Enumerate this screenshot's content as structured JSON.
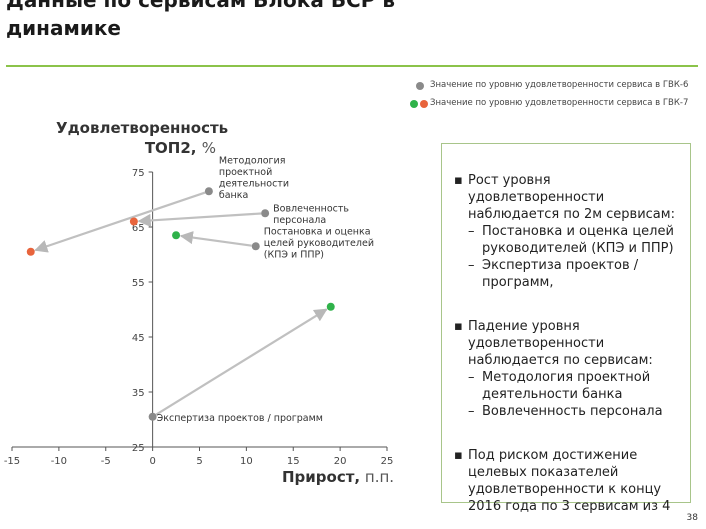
{
  "header": {
    "title": "Данные по сервисам Блока БСР в\nдинамике"
  },
  "colors": {
    "accent_green": "#8bc34a",
    "point_grey": "#8a8a8a",
    "point_green": "#2fb24a",
    "point_orange": "#e8643c",
    "arrow_grey": "#c0c0c0"
  },
  "legend": {
    "items": [
      {
        "label": "Значение по уровню удовлетворенности сервиса в ГВК-6",
        "color": "#8a8a8a"
      },
      {
        "label": "Значение по уровню удовлетворенности сервиса в ГВК-7",
        "color": "#2fb24a",
        "color2": "#e8643c"
      }
    ]
  },
  "axes": {
    "ylabel": "Удовлетворенность ТОП2,",
    "ylabel_unit": "%",
    "xlabel": "Прирост,",
    "xlabel_unit": "п.п."
  },
  "chart_data": {
    "type": "scatter",
    "xlim": [
      -15,
      25
    ],
    "ylim": [
      25,
      75
    ],
    "x_ticks": [
      "-15",
      "-10",
      "-5",
      "0",
      "5",
      "10",
      "15",
      "20",
      "25"
    ],
    "y_ticks": [
      "25",
      "35",
      "45",
      "55",
      "65",
      "75"
    ],
    "x_tick_values": [
      -15,
      -10,
      -5,
      0,
      5,
      10,
      15,
      20,
      25
    ],
    "y_tick_values": [
      25,
      35,
      45,
      55,
      65,
      75
    ],
    "series": [
      {
        "name": "Значение по уровню удовлетворенности сервиса в ГВК-6",
        "color": "#8a8a8a"
      },
      {
        "name": "Значение по уровню удовлетворенности сервиса в ГВК-7",
        "color": "#2fb24a"
      }
    ],
    "points": [
      {
        "service": "Методология проектной деятельности банка",
        "gvk6": {
          "x": 6,
          "y": 71.5
        },
        "gvk7": {
          "x": -13,
          "y": 60.5
        },
        "gvk7_color": "#e8643c"
      },
      {
        "service": "Вовлеченность персонала",
        "gvk6": {
          "x": 12,
          "y": 67.5
        },
        "gvk7": {
          "x": -2,
          "y": 66
        },
        "gvk7_color": "#e8643c"
      },
      {
        "service": "Постановка и оценка целей руководителей (КПЭ и ППР)",
        "gvk6": {
          "x": 11,
          "y": 61.5
        },
        "gvk7": {
          "x": 2.5,
          "y": 63.5
        },
        "gvk7_color": "#2fb24a"
      },
      {
        "service": "Экспертиза проектов / программ",
        "gvk6": {
          "x": 0,
          "y": 30.5
        },
        "gvk7": {
          "x": 19,
          "y": 50.5
        },
        "gvk7_color": "#2fb24a"
      }
    ],
    "annotations": [
      {
        "lines": [
          "Методология",
          "проектной",
          "деятельности",
          "банка"
        ]
      },
      {
        "lines": [
          "Вовлеченность",
          "персонала"
        ]
      },
      {
        "lines": [
          "Постановка и оценка",
          "целей руководителей",
          "(КПЭ и ППР)"
        ]
      },
      {
        "lines": [
          "Экспертиза проектов / программ"
        ]
      }
    ]
  },
  "sidebar": {
    "sections": [
      {
        "bullet": "▪",
        "text_lines": [
          "Рост уровня",
          "удовлетворенности",
          "наблюдается по 2м сервисам:"
        ],
        "sub": [
          {
            "dash": "–",
            "lines": [
              "Постановка и оценка целей",
              "руководителей (КПЭ и ППР)"
            ]
          },
          {
            "dash": "–",
            "lines": [
              "Экспертиза проектов /",
              "программ,"
            ]
          }
        ]
      },
      {
        "bullet": "▪",
        "text_lines": [
          "Падение уровня",
          "удовлетворенности",
          "наблюдается по сервисам:"
        ],
        "sub": [
          {
            "dash": "–",
            "lines": [
              "Методология проектной",
              "деятельности банка"
            ]
          },
          {
            "dash": "–",
            "lines": [
              "Вовлеченность персонала"
            ]
          }
        ]
      },
      {
        "bullet": "▪",
        "text_lines": [
          "Под риском достижение",
          "целевых показателей",
          "удовлетворенности к концу",
          "2016 года по 3 сервисам из 4"
        ],
        "sub": []
      }
    ]
  },
  "footer": {
    "page_number": "38"
  }
}
